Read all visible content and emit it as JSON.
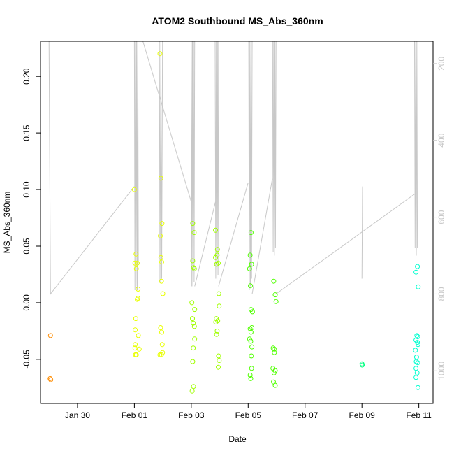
{
  "chart_data": {
    "type": "scatter",
    "title": "ATOM2 Southbound MS_Abs_360nm",
    "xlabel": "Date",
    "ylabel": "MS_Abs_360nm",
    "x_ticks": [
      "Jan 30",
      "Feb 01",
      "Feb 03",
      "Feb 05",
      "Feb 07",
      "Feb 09",
      "Feb 11"
    ],
    "x_tick_days": [
      30,
      32,
      34,
      36,
      38,
      40,
      42
    ],
    "xlim_days": [
      28.7,
      42.5
    ],
    "ylim": [
      -0.089,
      0.231
    ],
    "y_ticks": [
      -0.05,
      0.0,
      0.05,
      0.1,
      0.15,
      0.2
    ],
    "y_tick_labels": [
      "-0.05",
      "0.00",
      "0.05",
      "0.10",
      "0.15",
      "0.20"
    ],
    "right_axis": {
      "lim": [
        142,
        1085
      ],
      "ticks": [
        200,
        400,
        600,
        800,
        1000
      ],
      "tick_labels": [
        "200",
        "400",
        "600",
        "800",
        "1000"
      ],
      "color": "#c8c8c8",
      "reversed": true
    },
    "point_color_scale": [
      "#ff7f00",
      "#ffa500",
      "#e6ff00",
      "#7fff00",
      "#00ff7f",
      "#00ffd5"
    ],
    "series": [
      {
        "color": "#ff8c00",
        "points": [
          [
            29.05,
            -0.029
          ],
          [
            29.04,
            -0.067
          ],
          [
            29.06,
            -0.068
          ]
        ]
      },
      {
        "color": "#e8ff00",
        "points": [
          [
            32.0,
            0.1
          ],
          [
            32.06,
            0.043
          ],
          [
            32.02,
            0.035
          ],
          [
            32.1,
            0.035
          ],
          [
            32.07,
            0.03
          ],
          [
            32.13,
            0.012
          ],
          [
            32.1,
            0.003
          ],
          [
            32.12,
            0.004
          ],
          [
            32.05,
            -0.014
          ],
          [
            32.03,
            -0.024
          ],
          [
            32.14,
            -0.029
          ],
          [
            32.03,
            -0.037
          ],
          [
            32.02,
            -0.04
          ],
          [
            32.17,
            -0.041
          ],
          [
            32.04,
            -0.046
          ],
          [
            32.07,
            -0.046
          ],
          [
            32.9,
            0.22
          ],
          [
            32.93,
            0.11
          ],
          [
            32.97,
            0.07
          ],
          [
            32.91,
            0.059
          ],
          [
            32.93,
            0.04
          ],
          [
            32.96,
            0.036
          ],
          [
            32.95,
            0.019
          ],
          [
            33.0,
            0.008
          ],
          [
            32.92,
            -0.022
          ],
          [
            32.96,
            -0.026
          ],
          [
            32.98,
            -0.037
          ],
          [
            32.99,
            -0.044
          ],
          [
            32.95,
            -0.046
          ],
          [
            32.9,
            -0.046
          ]
        ]
      },
      {
        "color": "#a0ff00",
        "points": [
          [
            34.05,
            0.07
          ],
          [
            34.1,
            0.062
          ],
          [
            34.05,
            0.037
          ],
          [
            34.08,
            0.031
          ],
          [
            34.11,
            0.03
          ],
          [
            34.02,
            0.0
          ],
          [
            34.12,
            -0.006
          ],
          [
            34.04,
            -0.014
          ],
          [
            34.07,
            -0.018
          ],
          [
            34.11,
            -0.021
          ],
          [
            34.12,
            -0.032
          ],
          [
            34.07,
            -0.04
          ],
          [
            34.05,
            -0.052
          ],
          [
            34.08,
            -0.074
          ],
          [
            34.03,
            -0.078
          ],
          [
            34.85,
            0.064
          ],
          [
            34.92,
            0.047
          ],
          [
            34.91,
            0.042
          ],
          [
            34.85,
            0.04
          ],
          [
            34.89,
            0.034
          ],
          [
            34.95,
            0.035
          ],
          [
            34.97,
            0.008
          ],
          [
            34.98,
            -0.003
          ],
          [
            34.88,
            -0.014
          ],
          [
            34.93,
            -0.016
          ],
          [
            34.86,
            -0.017
          ],
          [
            34.91,
            -0.025
          ],
          [
            34.89,
            -0.028
          ],
          [
            34.96,
            -0.047
          ],
          [
            34.98,
            -0.051
          ],
          [
            34.95,
            -0.057
          ]
        ]
      },
      {
        "color": "#50ff00",
        "points": [
          [
            36.1,
            0.062
          ],
          [
            36.07,
            0.042
          ],
          [
            36.12,
            0.034
          ],
          [
            36.05,
            0.03
          ],
          [
            36.08,
            0.015
          ],
          [
            36.1,
            -0.006
          ],
          [
            36.15,
            -0.008
          ],
          [
            36.07,
            -0.023
          ],
          [
            36.13,
            -0.022
          ],
          [
            36.1,
            -0.026
          ],
          [
            36.05,
            -0.032
          ],
          [
            36.09,
            -0.034
          ],
          [
            36.13,
            -0.039
          ],
          [
            36.11,
            -0.047
          ],
          [
            36.12,
            -0.058
          ],
          [
            36.07,
            -0.064
          ],
          [
            36.09,
            -0.067
          ],
          [
            36.9,
            0.019
          ],
          [
            36.95,
            0.007
          ],
          [
            36.98,
            0.001
          ],
          [
            36.88,
            -0.04
          ],
          [
            36.92,
            -0.041
          ],
          [
            36.92,
            -0.044
          ],
          [
            36.87,
            -0.058
          ],
          [
            36.95,
            -0.06
          ],
          [
            36.91,
            -0.062
          ],
          [
            36.89,
            -0.07
          ],
          [
            36.95,
            -0.073
          ]
        ]
      },
      {
        "color": "#00ff80",
        "points": [
          [
            40.0,
            -0.054
          ],
          [
            40.01,
            -0.055
          ]
        ]
      },
      {
        "color": "#00ffd0",
        "points": [
          [
            41.9,
            0.027
          ],
          [
            41.95,
            0.032
          ],
          [
            41.98,
            0.014
          ],
          [
            41.93,
            -0.029
          ],
          [
            41.96,
            -0.03
          ],
          [
            41.9,
            -0.033
          ],
          [
            41.95,
            -0.035
          ],
          [
            41.97,
            -0.037
          ],
          [
            41.88,
            -0.042
          ],
          [
            41.92,
            -0.048
          ],
          [
            41.91,
            -0.052
          ],
          [
            41.96,
            -0.053
          ],
          [
            41.9,
            -0.058
          ],
          [
            41.94,
            -0.062
          ],
          [
            41.9,
            -0.066
          ],
          [
            41.97,
            -0.075
          ]
        ]
      }
    ],
    "depth_trace": {
      "color": "#c8c8c8",
      "segments": [
        [
          [
            29.0,
            142
          ],
          [
            29.05,
            800
          ],
          [
            32.0,
            520
          ]
        ],
        [
          [
            32.0,
            142
          ],
          [
            32.02,
            790
          ],
          [
            32.04,
            142
          ],
          [
            32.06,
            780
          ],
          [
            32.08,
            142
          ],
          [
            32.1,
            790
          ],
          [
            32.12,
            142
          ],
          [
            32.14,
            720
          ]
        ],
        [
          [
            32.3,
            142
          ],
          [
            34.0,
            560
          ]
        ],
        [
          [
            32.88,
            142
          ],
          [
            32.9,
            770
          ],
          [
            32.93,
            142
          ],
          [
            32.96,
            760
          ],
          [
            32.99,
            142
          ]
        ],
        [
          [
            34.0,
            142
          ],
          [
            34.02,
            780
          ],
          [
            34.04,
            142
          ],
          [
            34.06,
            780
          ],
          [
            34.08,
            142
          ],
          [
            34.1,
            770
          ],
          [
            34.12,
            142
          ]
        ],
        [
          [
            34.12,
            780
          ],
          [
            34.85,
            560
          ]
        ],
        [
          [
            34.84,
            142
          ],
          [
            34.86,
            760
          ],
          [
            34.88,
            142
          ],
          [
            34.9,
            770
          ],
          [
            34.92,
            142
          ],
          [
            34.94,
            750
          ],
          [
            34.96,
            142
          ]
        ],
        [
          [
            34.96,
            780
          ],
          [
            36.0,
            510
          ]
        ],
        [
          [
            36.02,
            142
          ],
          [
            36.04,
            790
          ],
          [
            36.06,
            142
          ],
          [
            36.08,
            780
          ],
          [
            36.1,
            142
          ],
          [
            36.12,
            760
          ],
          [
            36.14,
            142
          ]
        ],
        [
          [
            36.14,
            800
          ],
          [
            36.85,
            500
          ]
        ],
        [
          [
            36.86,
            142
          ],
          [
            36.88,
            690
          ],
          [
            36.9,
            142
          ],
          [
            36.92,
            700
          ],
          [
            36.94,
            142
          ],
          [
            36.96,
            680
          ],
          [
            36.98,
            142
          ]
        ],
        [
          [
            36.98,
            800
          ],
          [
            41.85,
            540
          ]
        ],
        [
          [
            40.0,
            760
          ],
          [
            40.02,
            520
          ]
        ],
        [
          [
            41.85,
            142
          ],
          [
            41.87,
            680
          ],
          [
            41.89,
            142
          ],
          [
            41.91,
            700
          ],
          [
            41.93,
            142
          ],
          [
            41.95,
            680
          ]
        ]
      ]
    }
  }
}
